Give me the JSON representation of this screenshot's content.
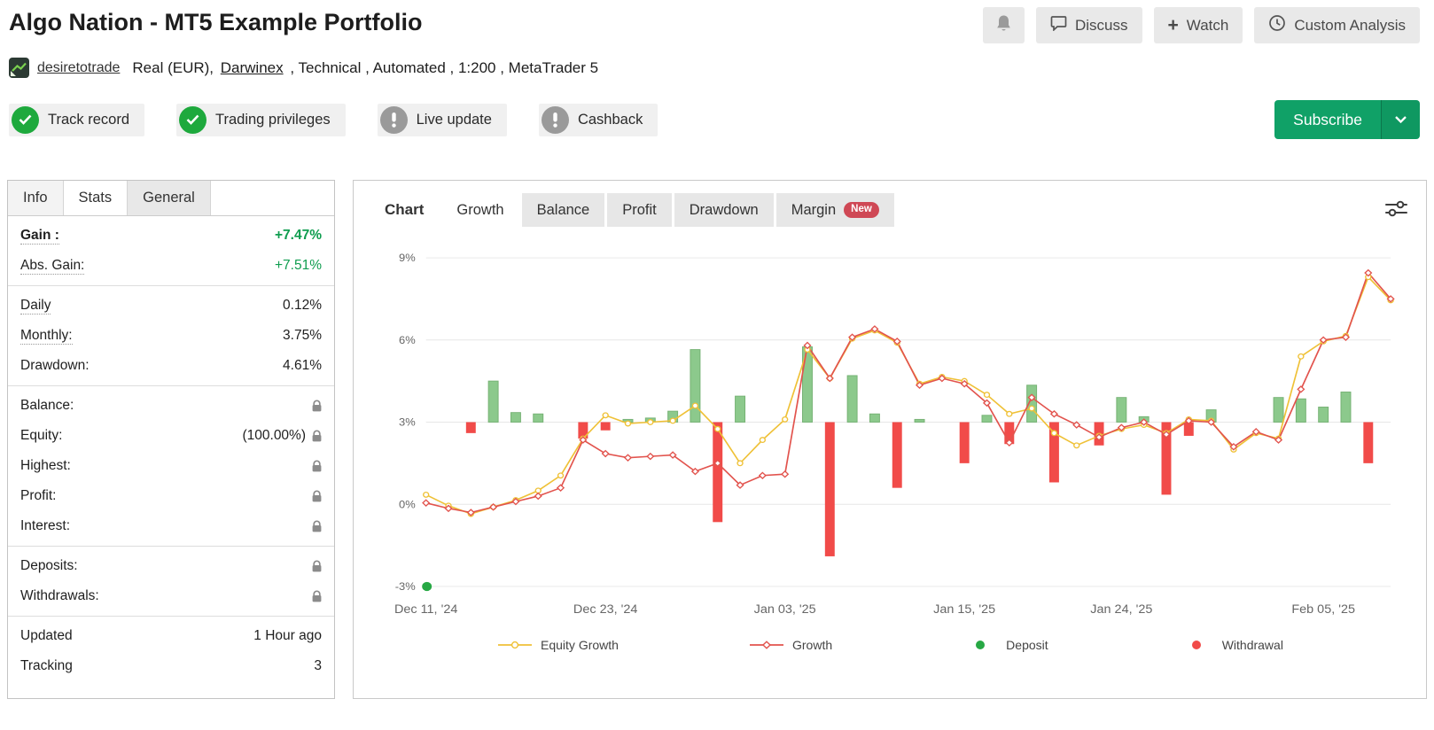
{
  "header": {
    "title": "Algo Nation - MT5 Example Portfolio",
    "buttons": {
      "discuss": "Discuss",
      "watch": "Watch",
      "custom_analysis": "Custom Analysis"
    }
  },
  "account": {
    "name": "desiretotrade",
    "meta_prefix": "Real (EUR),",
    "broker": "Darwinex",
    "meta_suffix": ", Technical , Automated , 1:200 , MetaTrader 5"
  },
  "badges": [
    {
      "label": "Track record",
      "status": "verified"
    },
    {
      "label": "Trading privileges",
      "status": "verified"
    },
    {
      "label": "Live update",
      "status": "warning"
    },
    {
      "label": "Cashback",
      "status": "warning"
    }
  ],
  "subscribe": {
    "label": "Subscribe"
  },
  "left_panel": {
    "tabs": [
      {
        "label": "Info",
        "active": false
      },
      {
        "label": "Stats",
        "active": true
      },
      {
        "label": "General",
        "active": false
      }
    ]
  },
  "stats": {
    "groups": [
      {
        "rows": [
          {
            "label": "Gain :",
            "value": "+7.47%",
            "bold": true,
            "underline": true,
            "value_style": "gain"
          },
          {
            "label": "Abs. Gain:",
            "value": "+7.51%",
            "underline": true,
            "value_style": "gain-light"
          }
        ]
      },
      {
        "rows": [
          {
            "label": "Daily",
            "value": "0.12%",
            "underline": true
          },
          {
            "label": "Monthly:",
            "value": "3.75%",
            "underline": true
          },
          {
            "label": "Drawdown:",
            "value": "4.61%"
          }
        ]
      },
      {
        "rows": [
          {
            "label": "Balance:",
            "locked": true
          },
          {
            "label": "Equity:",
            "value": "(100.00%)",
            "locked": true
          },
          {
            "label": "Highest:",
            "locked": true
          },
          {
            "label": "Profit:",
            "locked": true
          },
          {
            "label": "Interest:",
            "locked": true
          }
        ]
      },
      {
        "rows": [
          {
            "label": "Deposits:",
            "locked": true
          },
          {
            "label": "Withdrawals:",
            "locked": true
          }
        ]
      },
      {
        "rows": [
          {
            "label": "Updated",
            "value": "1 Hour ago"
          },
          {
            "label": "Tracking",
            "value": "3"
          }
        ]
      }
    ]
  },
  "chart_panel": {
    "tabs": [
      {
        "label": "Chart",
        "variant": "title"
      },
      {
        "label": "Growth",
        "active": true
      },
      {
        "label": "Balance",
        "active": false
      },
      {
        "label": "Profit",
        "active": false
      },
      {
        "label": "Drawdown",
        "active": false
      },
      {
        "label": "Margin",
        "active": false,
        "badge": "New"
      }
    ]
  },
  "chart_data": {
    "type": "line",
    "title": "Growth",
    "ylim": [
      -3,
      9
    ],
    "yticks": [
      9,
      6,
      3,
      0,
      -3
    ],
    "ytick_labels": [
      "9%",
      "6%",
      "3%",
      "0%",
      "-3%"
    ],
    "x_count": 44,
    "xticks": [
      {
        "i": 0,
        "label": "Dec 11, '24"
      },
      {
        "i": 8,
        "label": "Dec 23, '24"
      },
      {
        "i": 16,
        "label": "Jan 03, '25"
      },
      {
        "i": 24,
        "label": "Jan 15, '25"
      },
      {
        "i": 31,
        "label": "Jan 24, '25"
      },
      {
        "i": 40,
        "label": "Feb 05, '25"
      }
    ],
    "series": [
      {
        "name": "Equity Growth",
        "marker": "circle",
        "color": "#efc137",
        "values": [
          0.35,
          -0.05,
          -0.35,
          -0.1,
          0.15,
          0.5,
          1.05,
          2.4,
          3.25,
          2.95,
          3.0,
          3.05,
          3.6,
          2.75,
          1.5,
          2.35,
          3.1,
          5.65,
          4.6,
          6.05,
          6.35,
          5.9,
          4.4,
          4.65,
          4.5,
          4.0,
          3.3,
          3.5,
          2.6,
          2.15,
          2.5,
          2.75,
          2.9,
          2.6,
          3.1,
          3.05,
          2.0,
          2.6,
          2.4,
          5.4,
          5.95,
          6.15,
          8.3,
          7.45
        ]
      },
      {
        "name": "Growth",
        "marker": "diamond",
        "color": "#e2534d",
        "values": [
          0.05,
          -0.15,
          -0.3,
          -0.1,
          0.1,
          0.3,
          0.6,
          2.35,
          1.85,
          1.7,
          1.75,
          1.8,
          1.2,
          1.5,
          0.7,
          1.05,
          1.1,
          5.8,
          4.6,
          6.1,
          6.4,
          5.95,
          4.35,
          4.6,
          4.4,
          3.7,
          2.25,
          3.9,
          3.3,
          2.9,
          2.45,
          2.8,
          3.0,
          2.55,
          3.05,
          3.0,
          2.1,
          2.65,
          2.35,
          4.2,
          6.0,
          6.1,
          8.45,
          7.5
        ]
      }
    ],
    "bars": {
      "baseline": 3,
      "deposits": [
        {
          "i": 3,
          "v": 4.5
        },
        {
          "i": 4,
          "v": 3.35
        },
        {
          "i": 5,
          "v": 3.3
        },
        {
          "i": 9,
          "v": 3.1
        },
        {
          "i": 10,
          "v": 3.15
        },
        {
          "i": 11,
          "v": 3.4
        },
        {
          "i": 12,
          "v": 5.65
        },
        {
          "i": 14,
          "v": 3.95
        },
        {
          "i": 17,
          "v": 5.75
        },
        {
          "i": 19,
          "v": 4.7
        },
        {
          "i": 20,
          "v": 3.3
        },
        {
          "i": 22,
          "v": 3.1
        },
        {
          "i": 25,
          "v": 3.25
        },
        {
          "i": 27,
          "v": 4.35
        },
        {
          "i": 31,
          "v": 3.9
        },
        {
          "i": 32,
          "v": 3.2
        },
        {
          "i": 35,
          "v": 3.45
        },
        {
          "i": 38,
          "v": 3.9
        },
        {
          "i": 39,
          "v": 3.85
        },
        {
          "i": 40,
          "v": 3.55
        },
        {
          "i": 41,
          "v": 4.1
        }
      ],
      "withdrawals": [
        {
          "i": 2,
          "v": 2.6
        },
        {
          "i": 7,
          "v": 2.4
        },
        {
          "i": 8,
          "v": 2.7
        },
        {
          "i": 13,
          "v": -0.65
        },
        {
          "i": 18,
          "v": -1.9
        },
        {
          "i": 21,
          "v": 0.6
        },
        {
          "i": 24,
          "v": 1.5
        },
        {
          "i": 26,
          "v": 2.2
        },
        {
          "i": 28,
          "v": 0.8
        },
        {
          "i": 30,
          "v": 2.15
        },
        {
          "i": 33,
          "v": 0.35
        },
        {
          "i": 34,
          "v": 2.5
        },
        {
          "i": 42,
          "v": 1.5
        }
      ]
    },
    "start_marker": {
      "i": 0,
      "v": -3
    },
    "colors": {
      "equity_growth": "#efc137",
      "growth": "#e2534d",
      "deposit_bar": "#8cc98c",
      "deposit_bar_border": "#76b274",
      "withdrawal_bar": "#f14b49",
      "deposit_dot": "#27a844",
      "withdrawal_dot": "#f14b49",
      "grid": "#e7e7e7",
      "axis_text": "#666666"
    },
    "legend": [
      {
        "label": "Equity Growth",
        "marker": "line-circle",
        "color": "#efc137"
      },
      {
        "label": "Growth",
        "marker": "line-diamond",
        "color": "#e2534d"
      },
      {
        "label": "Deposit",
        "marker": "dot",
        "color": "#27a844"
      },
      {
        "label": "Withdrawal",
        "marker": "dot",
        "color": "#f14b49"
      }
    ]
  }
}
